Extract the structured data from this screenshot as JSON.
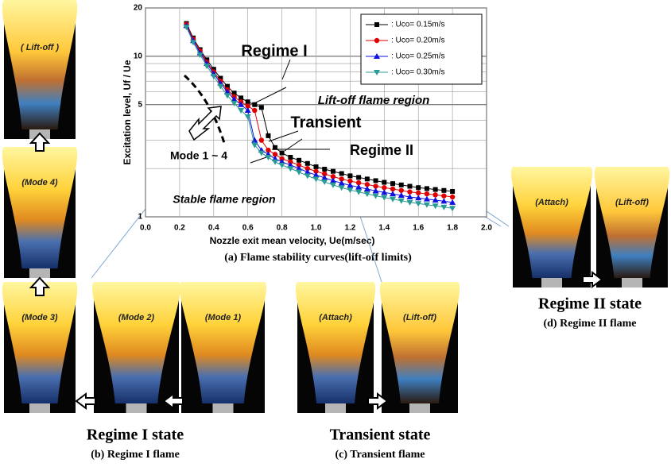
{
  "chart_data": {
    "type": "line",
    "xlabel": "Nozzle exit mean velocity, Ue(m/sec)",
    "ylabel": "Excitation level, Uf / Ue",
    "caption": "(a)  Flame stability curves(lift-off limits)",
    "x": [
      0.24,
      0.28,
      0.32,
      0.36,
      0.4,
      0.44,
      0.48,
      0.52,
      0.56,
      0.6,
      0.64,
      0.68,
      0.72,
      0.76,
      0.8,
      0.85,
      0.9,
      0.95,
      1.0,
      1.05,
      1.1,
      1.15,
      1.2,
      1.25,
      1.3,
      1.35,
      1.4,
      1.45,
      1.5,
      1.55,
      1.6,
      1.65,
      1.7,
      1.75,
      1.8
    ],
    "series": [
      {
        "name": ": Uco= 0.15m/s",
        "color": "#000000",
        "marker": "square",
        "values": [
          16,
          13,
          11,
          9.5,
          8.3,
          7.3,
          6.5,
          5.9,
          5.5,
          5.2,
          5.0,
          4.8,
          3.2,
          2.7,
          2.5,
          2.35,
          2.25,
          2.15,
          2.05,
          1.98,
          1.92,
          1.86,
          1.8,
          1.76,
          1.72,
          1.68,
          1.64,
          1.61,
          1.58,
          1.55,
          1.52,
          1.5,
          1.48,
          1.46,
          1.44
        ]
      },
      {
        "name": ": Uco= 0.20m/s",
        "color": "#e00000",
        "marker": "circle",
        "values": [
          15.8,
          12.8,
          10.8,
          9.2,
          8.0,
          7.0,
          6.2,
          5.6,
          5.2,
          4.9,
          4.6,
          3.0,
          2.6,
          2.45,
          2.3,
          2.2,
          2.1,
          2.0,
          1.92,
          1.85,
          1.78,
          1.72,
          1.67,
          1.63,
          1.59,
          1.55,
          1.52,
          1.49,
          1.46,
          1.43,
          1.41,
          1.39,
          1.37,
          1.35,
          1.33
        ]
      },
      {
        "name": ": Uco= 0.25m/s",
        "color": "#1010e0",
        "marker": "triangle",
        "values": [
          15.5,
          12.5,
          10.5,
          9.0,
          7.8,
          6.8,
          6.0,
          5.4,
          5.0,
          4.6,
          3.0,
          2.6,
          2.45,
          2.3,
          2.2,
          2.1,
          2.0,
          1.9,
          1.82,
          1.75,
          1.68,
          1.62,
          1.57,
          1.53,
          1.49,
          1.45,
          1.42,
          1.39,
          1.36,
          1.33,
          1.31,
          1.29,
          1.27,
          1.25,
          1.23
        ]
      },
      {
        "name": ": Uco= 0.30m/s",
        "color": "#2a9a94",
        "marker": "triangle-down",
        "values": [
          15.2,
          12.2,
          10.2,
          8.7,
          7.5,
          6.5,
          5.7,
          5.1,
          4.6,
          4.2,
          2.8,
          2.5,
          2.35,
          2.2,
          2.1,
          2.0,
          1.9,
          1.8,
          1.72,
          1.65,
          1.58,
          1.52,
          1.47,
          1.43,
          1.39,
          1.35,
          1.32,
          1.29,
          1.26,
          1.23,
          1.21,
          1.19,
          1.17,
          1.15,
          1.13
        ]
      }
    ],
    "xlim": [
      0,
      2
    ],
    "xticks": [
      {
        "value": 0,
        "label": "0.0"
      },
      0.2,
      0.4,
      0.6,
      0.8,
      {
        "value": 1,
        "label": "1.0"
      },
      1.2,
      1.4,
      1.6,
      1.8,
      {
        "value": 2,
        "label": "2.0"
      }
    ],
    "ylim": [
      1,
      20
    ],
    "yticks": [
      1,
      5,
      10,
      20
    ],
    "yminorticks": [
      2,
      3,
      4,
      6,
      7,
      8,
      9
    ],
    "log_y": true,
    "grid": true,
    "legend": "upper right",
    "annotations": [
      "Regime I",
      "Lift-off  flame region",
      "Transient",
      "Regime II",
      "Mode 1 ~ 4",
      "Stable flame region"
    ]
  },
  "photos": [
    "( Lift-off )",
    "(Mode 4)",
    "(Mode 3)",
    "(Mode 2)",
    "(Mode 1)",
    "(Attach)",
    "(Lift-off)",
    "(Attach)",
    "(Lift-off)"
  ],
  "panels": [
    {
      "state": "Regime I  state",
      "caption": "(b)  Regime I flame"
    },
    {
      "state": "Transient  state",
      "caption": "(c)  Transient flame"
    },
    {
      "state": "Regime II  state",
      "caption": "(d)  Regime II flame"
    }
  ]
}
